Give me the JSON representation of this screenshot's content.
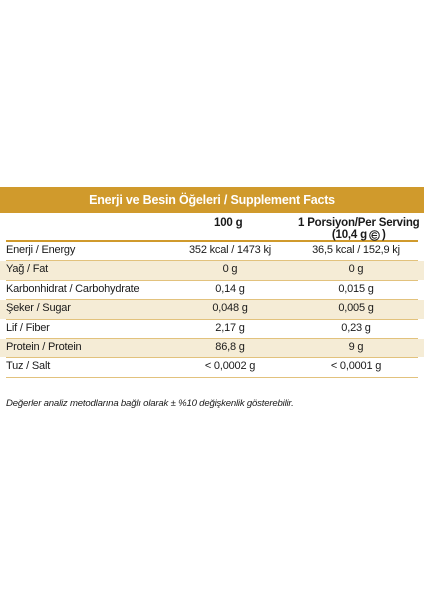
{
  "table": {
    "title": "Enerji ve Besin Öğeleri / Supplement Facts",
    "col_100g": "100 g",
    "col_serving_line1": "1 Porsiyon/Per Serving",
    "col_serving_line2": "(10,4 g",
    "col_serving_close": ")",
    "serving_icon": "estimated-sign-icon",
    "accent_color": "#d09a2c",
    "shade_color": "#f5ecd6",
    "rows": [
      {
        "label": "Enerji / Energy",
        "per100": "352 kcal / 1473 kj",
        "perServing": "36,5 kcal / 152,9 kj"
      },
      {
        "label": "Yağ / Fat",
        "per100": "0 g",
        "perServing": "0 g"
      },
      {
        "label": "Karbonhidrat / Carbohydrate",
        "per100": "0,14 g",
        "perServing": "0,015 g"
      },
      {
        "label": "Şeker / Sugar",
        "per100": "0,048 g",
        "perServing": "0,005 g"
      },
      {
        "label": "Lif / Fiber",
        "per100": "2,17 g",
        "perServing": "0,23 g"
      },
      {
        "label": "Protein / Protein",
        "per100": "86,8 g",
        "perServing": "9 g"
      },
      {
        "label": "Tuz / Salt",
        "per100": "< 0,0002 g",
        "perServing": "< 0,0001 g"
      }
    ]
  },
  "footnote": "Değerler analiz metodlarına bağlı olarak ± %10 değişkenlik gösterebilir."
}
